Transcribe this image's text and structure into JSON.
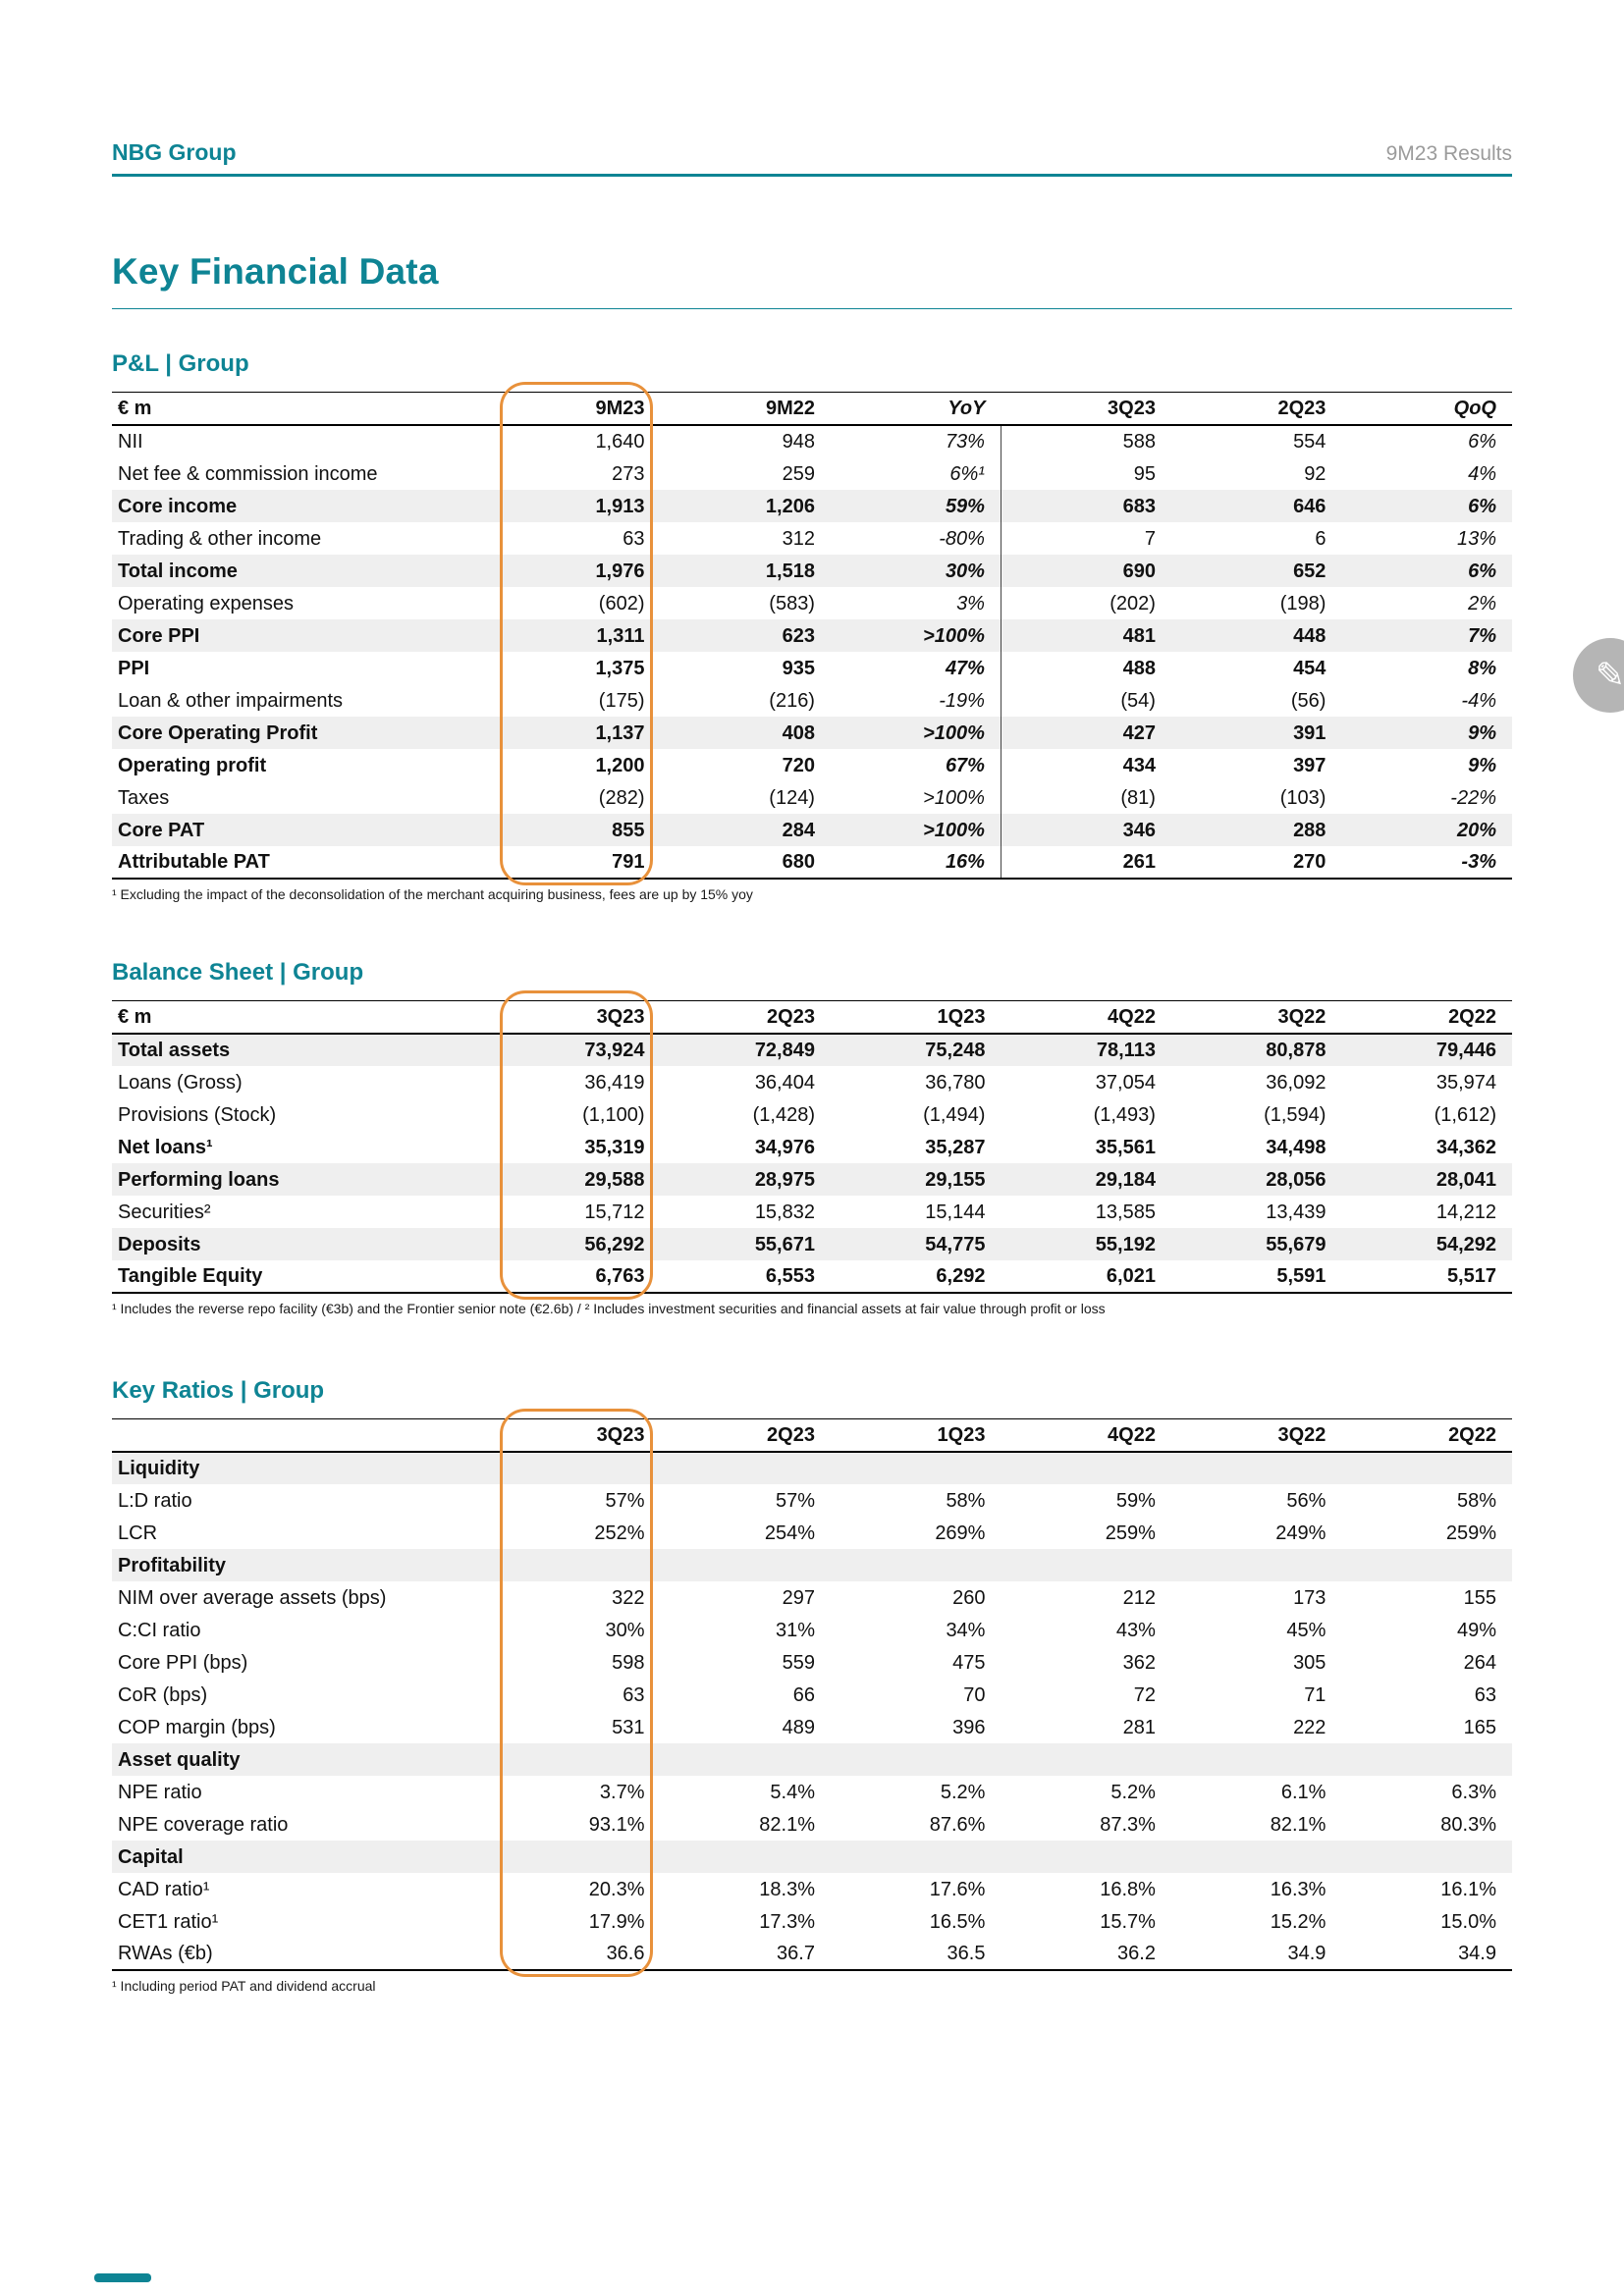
{
  "page": {
    "brand": "NBG Group",
    "report": "9M23 Results",
    "title": "Key Financial Data"
  },
  "colors": {
    "teal": "#0E8494",
    "orange_highlight": "#E8913B",
    "row_shade": "#EFEFEF",
    "muted_gray": "#9B9B9B"
  },
  "decorations": {
    "pencil_glyph": "✎"
  },
  "tables": [
    {
      "id": "pnl",
      "section_title": "P&L | Group",
      "columns": [
        "€ m",
        "9M23",
        "9M22",
        "YoY",
        "3Q23",
        "2Q23",
        "QoQ"
      ],
      "italic_cols": [
        3,
        6
      ],
      "divider_after": 3,
      "highlight_col": 1,
      "footnote": "¹ Excluding the impact of the deconsolidation of the merchant acquiring business, fees are up by 15% yoy",
      "rows": [
        {
          "label": "NII",
          "values": [
            "1,640",
            "948",
            "73%",
            "588",
            "554",
            "6%"
          ]
        },
        {
          "label": "Net fee & commission income",
          "values": [
            "273",
            "259",
            "6%¹",
            "95",
            "92",
            "4%"
          ]
        },
        {
          "label": "Core income",
          "bold": true,
          "shaded": true,
          "values": [
            "1,913",
            "1,206",
            "59%",
            "683",
            "646",
            "6%"
          ]
        },
        {
          "label": "Trading & other income",
          "values": [
            "63",
            "312",
            "-80%",
            "7",
            "6",
            "13%"
          ]
        },
        {
          "label": "Total income",
          "bold": true,
          "shaded": true,
          "values": [
            "1,976",
            "1,518",
            "30%",
            "690",
            "652",
            "6%"
          ]
        },
        {
          "label": "Operating expenses",
          "values": [
            "(602)",
            "(583)",
            "3%",
            "(202)",
            "(198)",
            "2%"
          ]
        },
        {
          "label": "Core PPI",
          "bold": true,
          "shaded": true,
          "values": [
            "1,311",
            "623",
            ">100%",
            "481",
            "448",
            "7%"
          ]
        },
        {
          "label": "PPI",
          "bold": true,
          "values": [
            "1,375",
            "935",
            "47%",
            "488",
            "454",
            "8%"
          ]
        },
        {
          "label": "Loan & other impairments",
          "values": [
            "(175)",
            "(216)",
            "-19%",
            "(54)",
            "(56)",
            "-4%"
          ]
        },
        {
          "label": "Core Operating Profit",
          "bold": true,
          "shaded": true,
          "values": [
            "1,137",
            "408",
            ">100%",
            "427",
            "391",
            "9%"
          ]
        },
        {
          "label": "Operating profit",
          "bold": true,
          "values": [
            "1,200",
            "720",
            "67%",
            "434",
            "397",
            "9%"
          ]
        },
        {
          "label": "Taxes",
          "values": [
            "(282)",
            "(124)",
            ">100%",
            "(81)",
            "(103)",
            "-22%"
          ]
        },
        {
          "label": "Core PAT",
          "bold": true,
          "shaded": true,
          "values": [
            "855",
            "284",
            ">100%",
            "346",
            "288",
            "20%"
          ]
        },
        {
          "label": "Attributable PAT",
          "bold": true,
          "values": [
            "791",
            "680",
            "16%",
            "261",
            "270",
            "-3%"
          ]
        }
      ]
    },
    {
      "id": "balance",
      "section_title": "Balance Sheet | Group",
      "columns": [
        "€ m",
        "3Q23",
        "2Q23",
        "1Q23",
        "4Q22",
        "3Q22",
        "2Q22"
      ],
      "italic_cols": [],
      "divider_after": -1,
      "highlight_col": 1,
      "footnote": "¹ Includes the reverse repo facility (€3b) and the Frontier senior note (€2.6b) / ² Includes investment securities and financial assets at fair value through profit or loss",
      "rows": [
        {
          "label": "Total assets",
          "bold": true,
          "shaded": true,
          "values": [
            "73,924",
            "72,849",
            "75,248",
            "78,113",
            "80,878",
            "79,446"
          ]
        },
        {
          "label": "Loans (Gross)",
          "values": [
            "36,419",
            "36,404",
            "36,780",
            "37,054",
            "36,092",
            "35,974"
          ]
        },
        {
          "label": "Provisions (Stock)",
          "values": [
            "(1,100)",
            "(1,428)",
            "(1,494)",
            "(1,493)",
            "(1,594)",
            "(1,612)"
          ]
        },
        {
          "label": "Net loans¹",
          "bold": true,
          "values": [
            "35,319",
            "34,976",
            "35,287",
            "35,561",
            "34,498",
            "34,362"
          ]
        },
        {
          "label": "Performing loans",
          "bold": true,
          "shaded": true,
          "values": [
            "29,588",
            "28,975",
            "29,155",
            "29,184",
            "28,056",
            "28,041"
          ]
        },
        {
          "label": "Securities²",
          "values": [
            "15,712",
            "15,832",
            "15,144",
            "13,585",
            "13,439",
            "14,212"
          ]
        },
        {
          "label": "Deposits",
          "bold": true,
          "shaded": true,
          "values": [
            "56,292",
            "55,671",
            "54,775",
            "55,192",
            "55,679",
            "54,292"
          ]
        },
        {
          "label": "Tangible Equity",
          "bold": true,
          "values": [
            "6,763",
            "6,553",
            "6,292",
            "6,021",
            "5,591",
            "5,517"
          ]
        }
      ]
    },
    {
      "id": "ratios",
      "section_title": "Key Ratios | Group",
      "columns": [
        "",
        "3Q23",
        "2Q23",
        "1Q23",
        "4Q22",
        "3Q22",
        "2Q22"
      ],
      "italic_cols": [],
      "divider_after": -1,
      "highlight_col": 1,
      "footnote": "¹ Including period PAT and dividend accrual",
      "rows": [
        {
          "label": "Liquidity",
          "section": true
        },
        {
          "label": "L:D ratio",
          "values": [
            "57%",
            "57%",
            "58%",
            "59%",
            "56%",
            "58%"
          ]
        },
        {
          "label": "LCR",
          "values": [
            "252%",
            "254%",
            "269%",
            "259%",
            "249%",
            "259%"
          ]
        },
        {
          "label": "Profitability",
          "section": true
        },
        {
          "label": "NIM over average assets (bps)",
          "values": [
            "322",
            "297",
            "260",
            "212",
            "173",
            "155"
          ]
        },
        {
          "label": "C:CI ratio",
          "values": [
            "30%",
            "31%",
            "34%",
            "43%",
            "45%",
            "49%"
          ]
        },
        {
          "label": "Core PPI (bps)",
          "values": [
            "598",
            "559",
            "475",
            "362",
            "305",
            "264"
          ]
        },
        {
          "label": "CoR (bps)",
          "values": [
            "63",
            "66",
            "70",
            "72",
            "71",
            "63"
          ]
        },
        {
          "label": "COP margin (bps)",
          "values": [
            "531",
            "489",
            "396",
            "281",
            "222",
            "165"
          ]
        },
        {
          "label": "Asset quality",
          "section": true
        },
        {
          "label": "NPE ratio",
          "values": [
            "3.7%",
            "5.4%",
            "5.2%",
            "5.2%",
            "6.1%",
            "6.3%"
          ]
        },
        {
          "label": "NPE coverage ratio",
          "values": [
            "93.1%",
            "82.1%",
            "87.6%",
            "87.3%",
            "82.1%",
            "80.3%"
          ]
        },
        {
          "label": "Capital",
          "section": true
        },
        {
          "label": "CAD ratio¹",
          "values": [
            "20.3%",
            "18.3%",
            "17.6%",
            "16.8%",
            "16.3%",
            "16.1%"
          ]
        },
        {
          "label": "CET1 ratio¹",
          "values": [
            "17.9%",
            "17.3%",
            "16.5%",
            "15.7%",
            "15.2%",
            "15.0%"
          ]
        },
        {
          "label": "RWAs (€b)",
          "values": [
            "36.6",
            "36.7",
            "36.5",
            "36.2",
            "34.9",
            "34.9"
          ]
        }
      ]
    }
  ]
}
